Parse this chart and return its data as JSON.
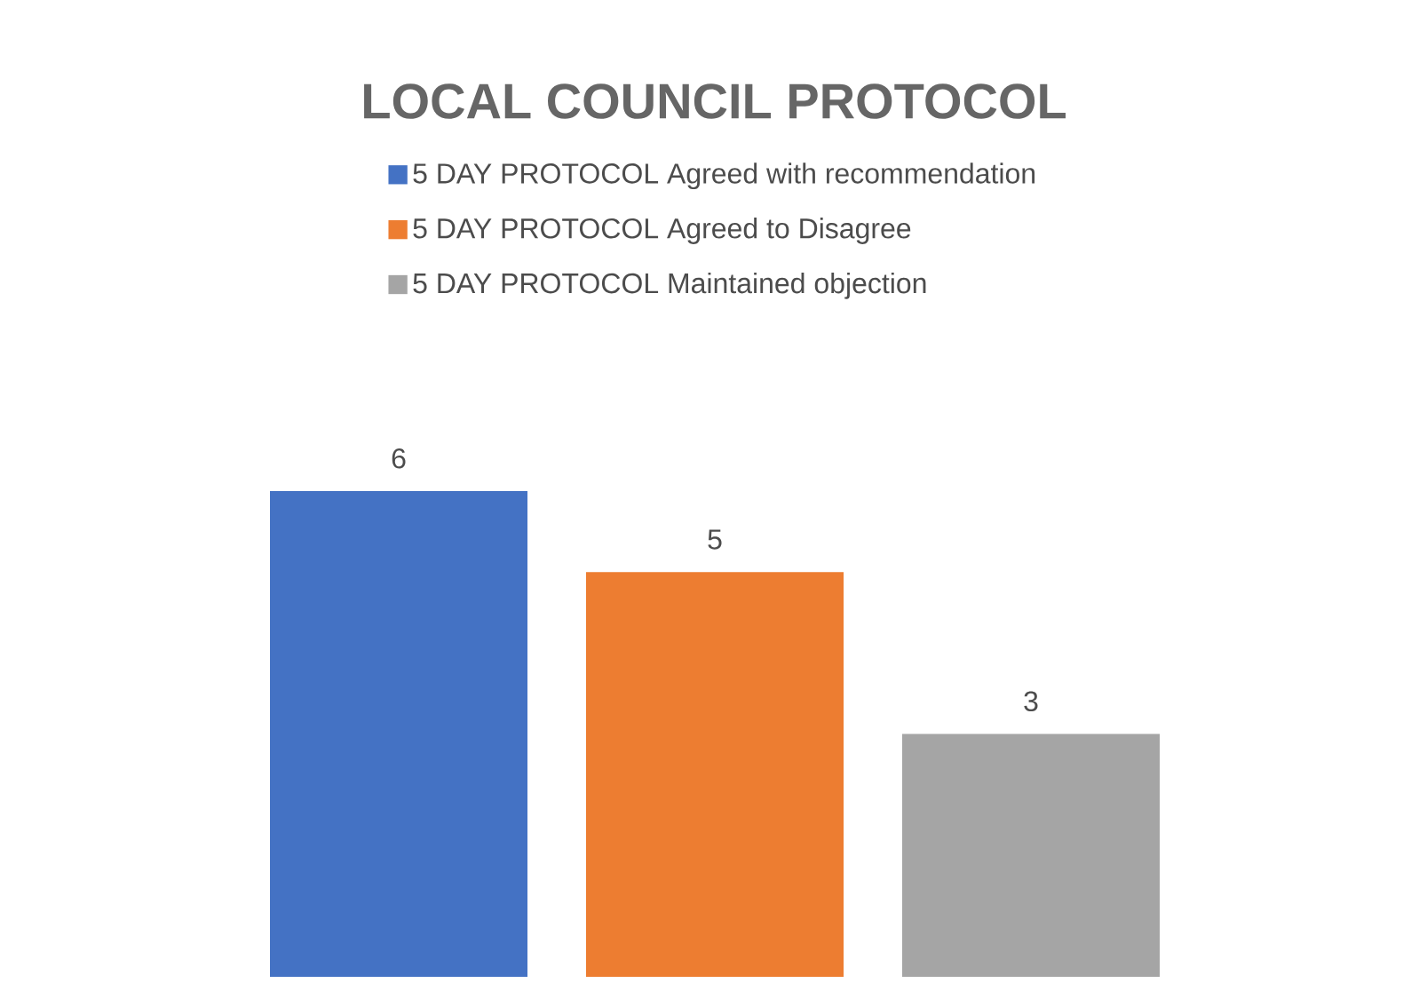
{
  "chart_data": {
    "type": "bar",
    "title": "LOCAL COUNCIL PROTOCOL",
    "categories": [
      null
    ],
    "series": [
      {
        "name": "5 DAY PROTOCOL Agreed with recommendation",
        "color": "#4472c4",
        "values": [
          6
        ]
      },
      {
        "name": "5 DAY PROTOCOL Agreed to Disagree",
        "color": "#ed7d31",
        "values": [
          5
        ]
      },
      {
        "name": "5 DAY PROTOCOL Maintained objection",
        "color": "#a5a5a5",
        "values": [
          3
        ]
      }
    ],
    "data_labels": true,
    "legend": "top"
  }
}
